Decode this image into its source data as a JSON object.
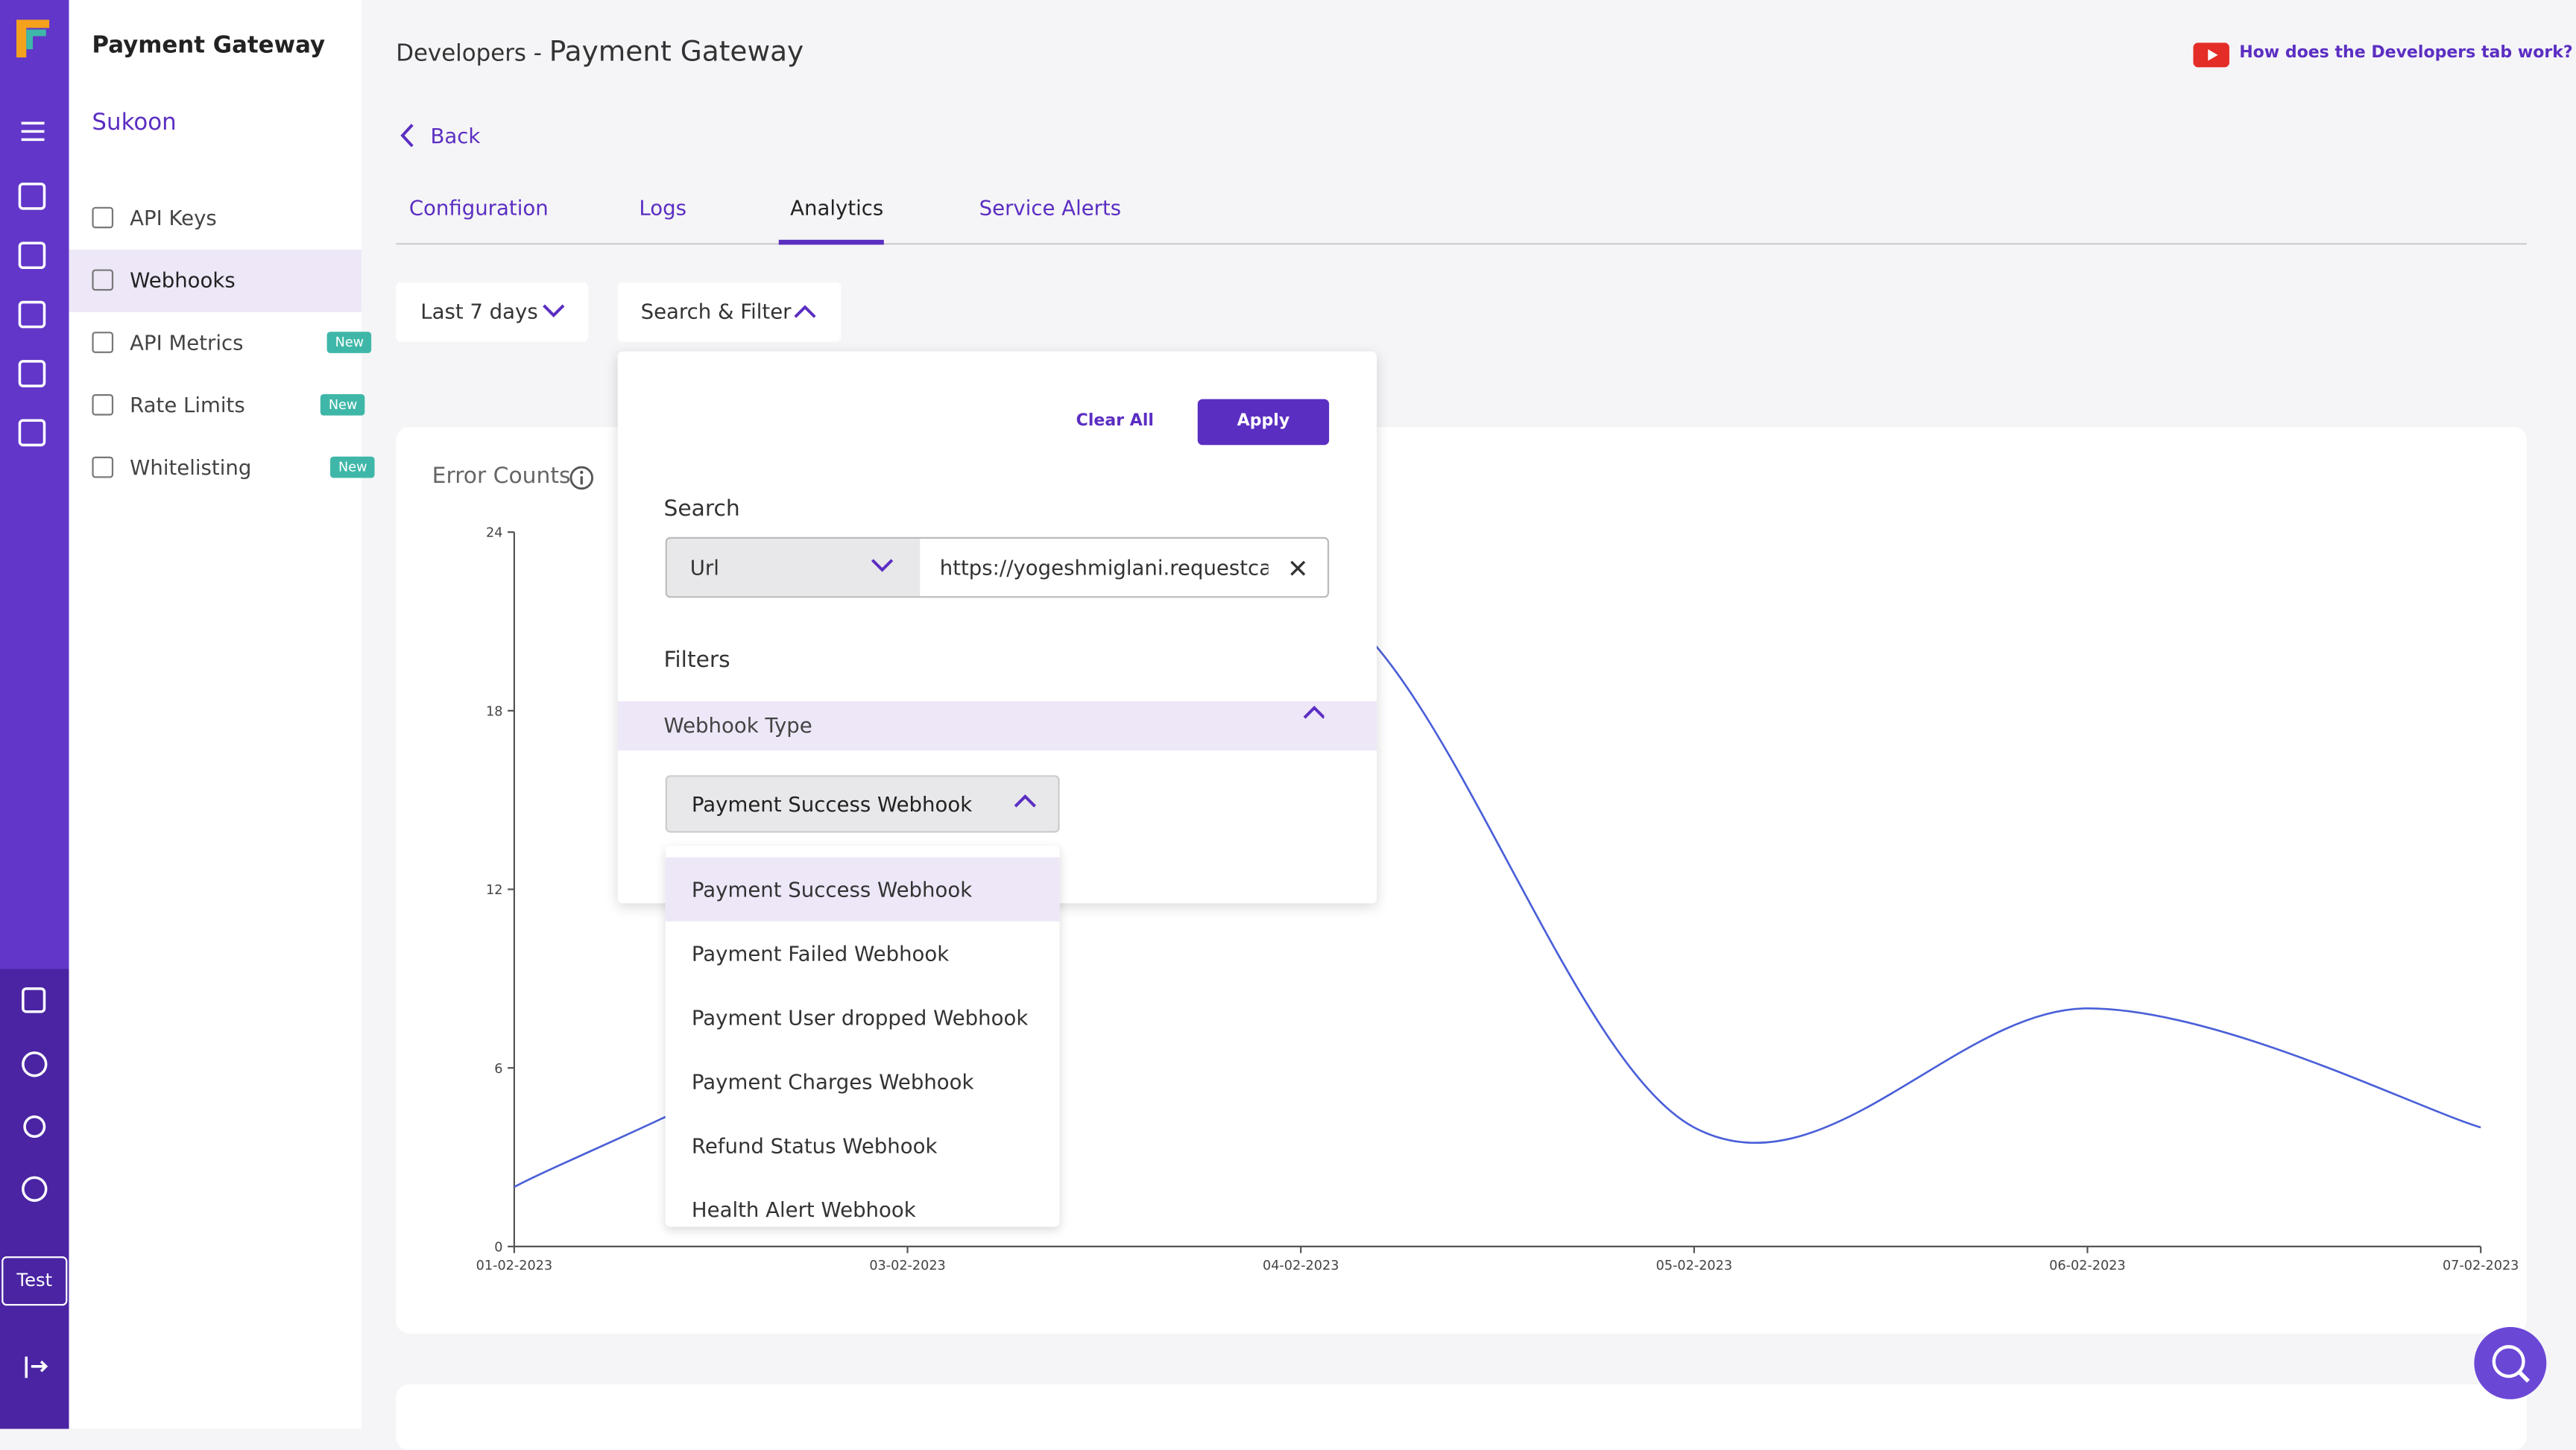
{
  "brand": "Payment Gateway",
  "merchant": "Sukoon",
  "test_label": "Test",
  "menu": [
    "API Keys",
    "Webhooks",
    "API Metrics",
    "Rate Limits",
    "Whitelisting"
  ],
  "badge": "New",
  "header": {
    "prefix": "Developers -",
    "title": "Payment Gateway",
    "help": "How does the Developers tab work?",
    "back": "Back"
  },
  "tabs": [
    "Configuration",
    "Logs",
    "Analytics",
    "Service Alerts"
  ],
  "period": "Last 7 days",
  "search_filter": "Search & Filter",
  "popup": {
    "clear": "Clear All",
    "apply": "Apply",
    "search_label": "Search",
    "search_field": "Url",
    "search_value": "https://yogeshmiglani.requestcatcher.com",
    "filters_label": "Filters",
    "filter_group": "Webhook Type",
    "selected": "Payment Success Webhook",
    "options": [
      "Payment Success Webhook",
      "Payment Failed Webhook",
      "Payment User dropped Webhook",
      "Payment Charges Webhook",
      "Refund Status Webhook",
      "Health Alert Webhook"
    ]
  },
  "chart_data": {
    "type": "line",
    "title": "Error Counts",
    "categories": [
      "01-02-2023",
      "03-02-2023",
      "04-02-2023",
      "05-02-2023",
      "06-02-2023",
      "07-02-2023"
    ],
    "values": [
      2,
      9,
      22,
      4,
      8,
      4
    ],
    "color": "#4a5fd8",
    "ylim": [
      0,
      24
    ],
    "yticks": [
      0,
      6,
      12,
      18,
      24
    ]
  }
}
